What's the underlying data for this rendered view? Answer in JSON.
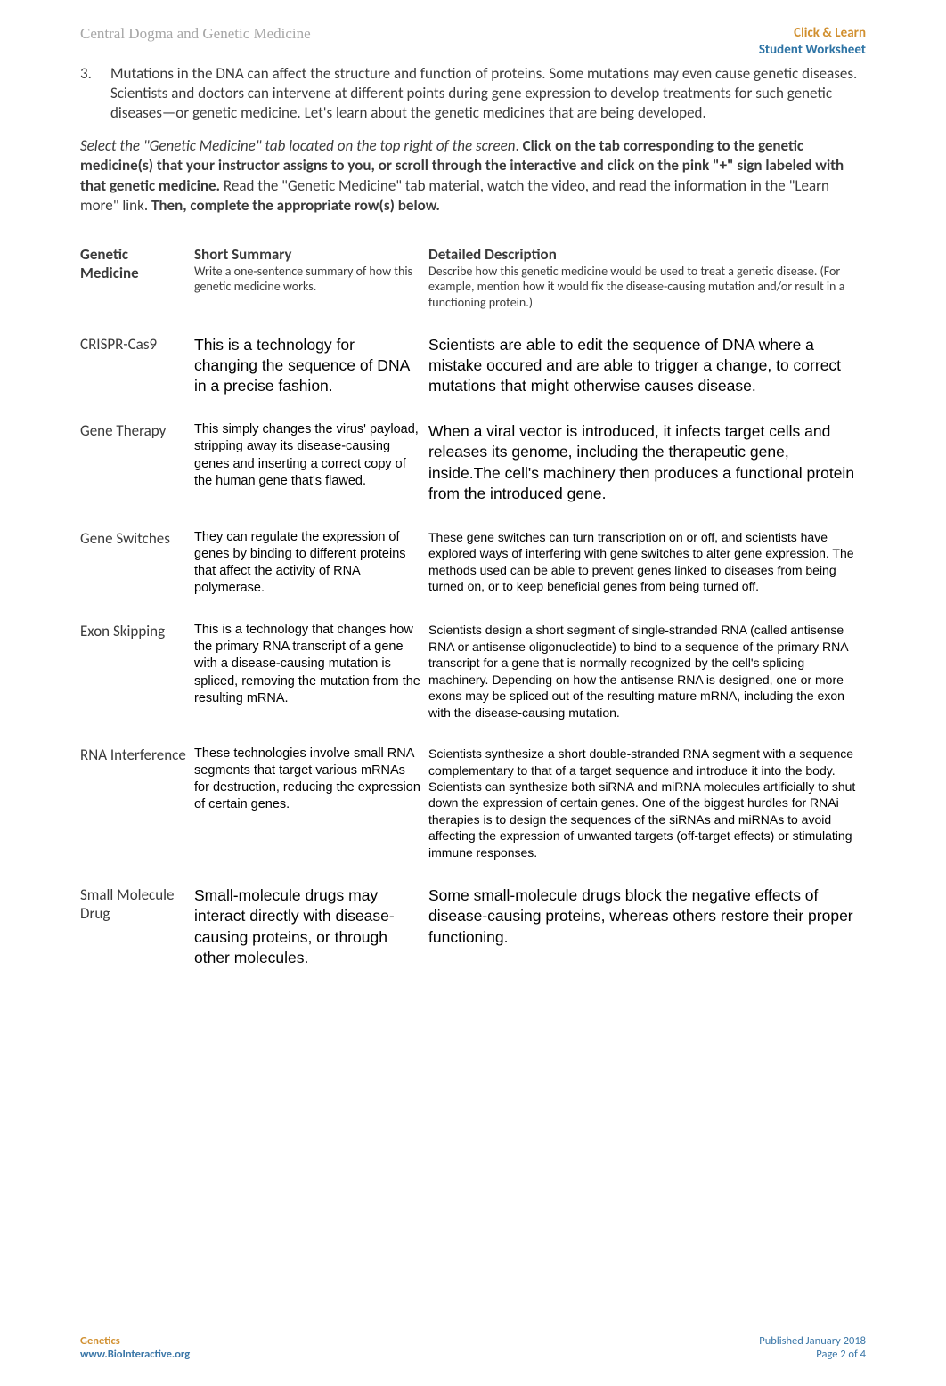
{
  "header": {
    "left": "Central Dogma and Genetic Medicine",
    "right_line1": "Click & Learn",
    "right_line2": "Student Worksheet"
  },
  "question": {
    "number": "3.",
    "text": "Mutations in the DNA can affect the structure and function of proteins. Some mutations may even cause genetic diseases. Scientists and doctors can intervene at different points during gene expression to develop treatments for such genetic diseases—or genetic medicine. Let's learn about the genetic medicines that are being developed."
  },
  "instructions": {
    "italic": "Select the \"Genetic Medicine\" tab located on the top right of the screen",
    "bold1": "Click on the tab corresponding to the genetic medicine(s) that your instructor assigns to you, or scroll through the interactive and click on the pink \"+\" sign labeled with that genetic medicine.",
    "plain": " Read the \"Genetic Medicine\" tab material, watch the video, and read the information in the \"Learn more\" link. ",
    "bold2": "Then, complete the appropriate row(s) below."
  },
  "table": {
    "headers": {
      "col1": "Genetic Medicine",
      "col2_title": "Short Summary",
      "col2_sub": "Write a one-sentence summary of how this genetic medicine works.",
      "col3_title": "Detailed Description",
      "col3_sub": "Describe how this genetic medicine would be used to treat a genetic disease. (For example, mention how it would fix the disease-causing mutation and/or result in a functioning protein.)"
    },
    "rows": [
      {
        "label": "CRISPR-Cas9",
        "summary": "This is a technology for changing the sequence of DNA in a precise fashion.",
        "detail": "Scientists are able to edit the sequence of DNA where a mistake occured and are able to trigger a change, to correct mutations that might otherwise causes disease.",
        "big": true
      },
      {
        "label": "Gene Therapy",
        "summary": "This  simply changes the virus' payload, stripping away its disease-causing genes and inserting a correct copy of the human gene that's flawed.",
        "detail": "When a viral vector is introduced, it infects target cells and releases its genome, including the therapeutic gene, inside.The cell's machinery then produces a functional protein from the introduced gene.",
        "big_detail": true
      },
      {
        "label": "Gene Switches",
        "summary": "They can regulate the expression of genes by binding to different proteins that affect the activity of RNA polymerase.",
        "detail": "These gene switches can turn transcription on or off, and scientists have explored ways of interfering with gene switches to alter gene expression. The methods used can be able to prevent genes linked to diseases from being turned on, or to keep beneficial genes from being turned off."
      },
      {
        "label": "Exon Skipping",
        "summary": "This is a technology that changes how the primary RNA transcript of a gene with a disease-causing mutation is spliced, removing the mutation from the resulting mRNA.",
        "detail": "Scientists design a short  segment of single-stranded RNA (called antisense RNA or antisense oligonucleotide) to bind to a sequence of the primary RNA transcript for a gene that is normally recognized by the cell's splicing machinery.  Depending on how the antisense RNA is designed, one or more exons may be spliced out of the resulting mature mRNA, including the exon with the disease-causing mutation."
      },
      {
        "label": "RNA Interference",
        "summary": "These technologies involve small RNA segments that target various mRNAs for destruction, reducing the expression of certain genes.",
        "detail": "Scientists synthesize a short double-stranded RNA segment with a sequence complementary to that of a target sequence and introduce it into the body. Scientists can synthesize both siRNA and miRNA molecules artificially to shut down the expression of certain genes. One of the biggest hurdles for RNAi therapies is to design the sequences of the siRNAs and miRNAs to avoid affecting the expression of unwanted targets (off-target effects) or stimulating immune responses."
      },
      {
        "label": "Small Molecule Drug",
        "summary": "Small-molecule drugs may interact directly with disease-causing proteins, or through other molecules.",
        "detail": "Some small-molecule drugs block the negative effects of disease-causing proteins, whereas others restore their proper functioning.",
        "big": true
      }
    ]
  },
  "footer": {
    "left_line1": "Genetics",
    "left_line2": "www.BioInteractive.org",
    "right_line1": "Published January 2018",
    "right_line2": "Page 2 of 4"
  }
}
